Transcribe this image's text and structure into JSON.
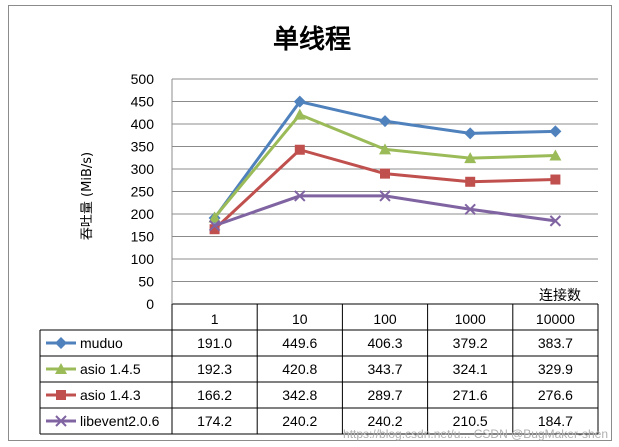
{
  "chart_data": {
    "type": "line",
    "title": "单线程",
    "ylabel": "吞吐量 (MiB/s)",
    "xlabel": "连接数",
    "ylim": [
      0,
      500
    ],
    "yticks": [
      "0",
      "50",
      "100",
      "150",
      "200",
      "250",
      "300",
      "350",
      "400",
      "450",
      "500"
    ],
    "grid": true,
    "legend": "data-table",
    "categories": [
      "1",
      "10",
      "100",
      "1000",
      "10000"
    ],
    "series": [
      {
        "name": "muduo",
        "color": "#4f81bd",
        "marker": "diamond",
        "values": [
          191.0,
          449.6,
          406.3,
          379.2,
          383.7
        ],
        "labels": [
          "191.0",
          "449.6",
          "406.3",
          "379.2",
          "383.7"
        ]
      },
      {
        "name": "asio 1.4.5",
        "color": "#9bbb59",
        "marker": "triangle",
        "values": [
          192.3,
          420.8,
          343.7,
          324.1,
          329.9
        ],
        "labels": [
          "192.3",
          "420.8",
          "343.7",
          "324.1",
          "329.9"
        ]
      },
      {
        "name": "asio 1.4.3",
        "color": "#c0504d",
        "marker": "square",
        "values": [
          166.2,
          342.8,
          289.7,
          271.6,
          276.6
        ],
        "labels": [
          "166.2",
          "342.8",
          "289.7",
          "271.6",
          "276.6"
        ]
      },
      {
        "name": "libevent2.0.6",
        "color": "#8064a2",
        "marker": "x",
        "values": [
          174.2,
          240.2,
          240.2,
          210.5,
          184.7
        ],
        "labels": [
          "174.2",
          "240.2",
          "240.2",
          "210.5",
          "184.7"
        ]
      }
    ]
  },
  "watermark": "https://blog.csdn.net/u... CSDN @BugMaker-shen"
}
